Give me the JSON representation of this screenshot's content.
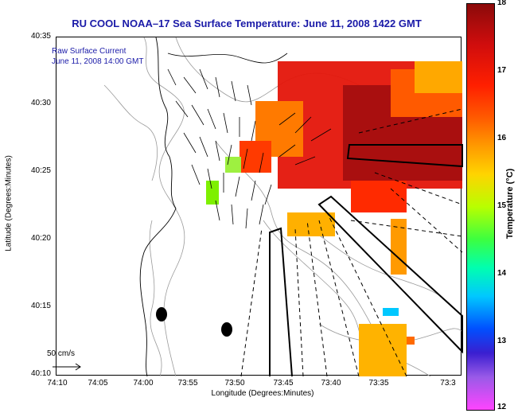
{
  "title": "RU COOL  NOAA–17  Sea Surface Temperature:  June 11, 2008 1422 GMT",
  "legend": {
    "line1": "Raw Surface Current",
    "line2": "June 11, 2008 14:00 GMT"
  },
  "axes": {
    "xlabel": "Longitude (Degrees:Minutes)",
    "ylabel": "Latitude (Degrees:Minutes)",
    "xticks": [
      "74:10",
      "74:05",
      "74:00",
      "73:55",
      "73:50",
      "73:45",
      "73:40",
      "73:35",
      "73:3"
    ],
    "yticks": [
      "40:35",
      "40:30",
      "40:25",
      "40:20",
      "40:15",
      "40:10"
    ]
  },
  "colorbar": {
    "label": "Temperature (°C)",
    "ticks": [
      "18",
      "17",
      "16",
      "15",
      "14",
      "13",
      "12"
    ],
    "range": [
      12,
      18
    ]
  },
  "scale": {
    "label": "50 cm/s"
  },
  "colors": {
    "title": "#1a1aa8",
    "warm_max": "#8b0a0a",
    "warm": "#ff2a00",
    "mid": "#ff8c00",
    "cool": "#7fff00",
    "cold": "#0000ff",
    "min": "#ff44ff"
  }
}
